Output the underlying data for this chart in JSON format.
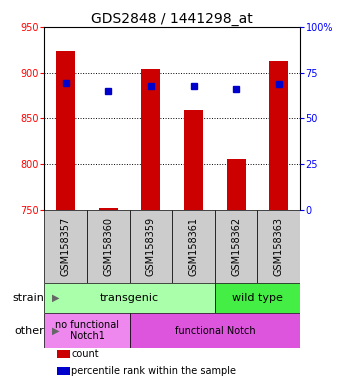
{
  "title": "GDS2848 / 1441298_at",
  "samples": [
    "GSM158357",
    "GSM158360",
    "GSM158359",
    "GSM158361",
    "GSM158362",
    "GSM158363"
  ],
  "bar_tops": [
    924,
    752,
    904,
    859,
    805,
    913
  ],
  "bar_base": 750,
  "percentile_values": [
    889,
    880,
    885,
    885,
    882,
    887
  ],
  "ylim": [
    750,
    950
  ],
  "yticks_left": [
    750,
    800,
    850,
    900,
    950
  ],
  "yticks_right": [
    0,
    25,
    50,
    75,
    100
  ],
  "bar_color": "#cc0000",
  "dot_color": "#0000cc",
  "strain_labels": [
    {
      "text": "transgenic",
      "start": 0,
      "end": 4,
      "color": "#aaffaa"
    },
    {
      "text": "wild type",
      "start": 4,
      "end": 6,
      "color": "#44ee44"
    }
  ],
  "other_labels": [
    {
      "text": "no functional\nNotch1",
      "start": 0,
      "end": 2,
      "color": "#ee88ee"
    },
    {
      "text": "functional Notch",
      "start": 2,
      "end": 6,
      "color": "#dd55dd"
    }
  ],
  "legend_items": [
    {
      "color": "#cc0000",
      "label": "count"
    },
    {
      "color": "#0000cc",
      "label": "percentile rank within the sample"
    }
  ],
  "title_fontsize": 10,
  "tick_fontsize": 7,
  "annot_fontsize": 8,
  "legend_fontsize": 7,
  "xtick_bg": "#cccccc"
}
